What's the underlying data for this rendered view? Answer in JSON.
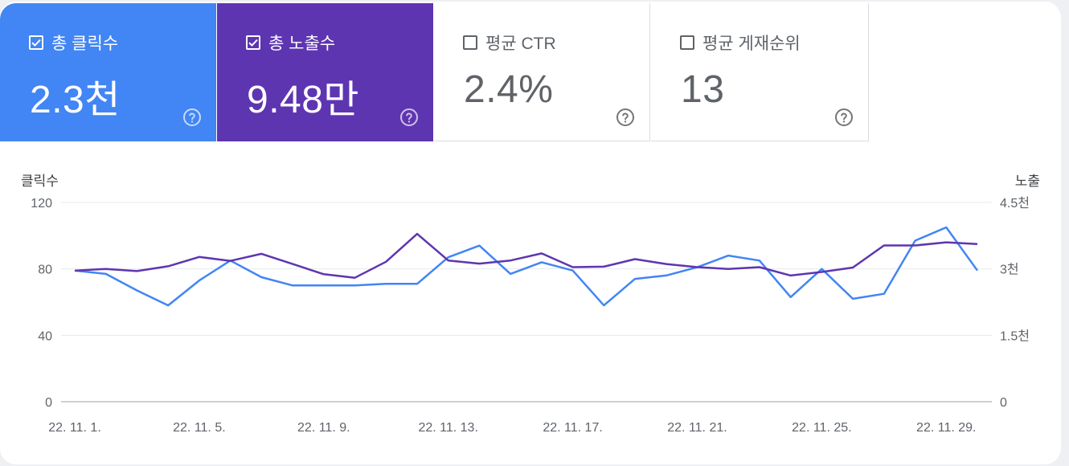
{
  "metrics": [
    {
      "label": "총 클릭수",
      "value": "2.3천",
      "checked": true,
      "color": "#4285f4"
    },
    {
      "label": "총 노출수",
      "value": "9.48만",
      "checked": true,
      "color": "#5e35b1"
    },
    {
      "label": "평균 CTR",
      "value": "2.4%",
      "checked": false,
      "color": "#ffffff"
    },
    {
      "label": "평균 게재순위",
      "value": "13",
      "checked": false,
      "color": "#ffffff"
    }
  ],
  "chart_data": {
    "type": "line",
    "ylabel_left": "클릭수",
    "ylabel_right": "노출",
    "left_ticks": [
      "0",
      "40",
      "80",
      "120"
    ],
    "left_range": [
      0,
      120
    ],
    "right_ticks": [
      "0",
      "1.5천",
      "3천",
      "4.5천"
    ],
    "right_range": [
      0,
      4500
    ],
    "grid": true,
    "x": [
      "22. 11. 1.",
      "22. 11. 2.",
      "22. 11. 3.",
      "22. 11. 4.",
      "22. 11. 5.",
      "22. 11. 6.",
      "22. 11. 7.",
      "22. 11. 8.",
      "22. 11. 9.",
      "22. 11. 10.",
      "22. 11. 11.",
      "22. 11. 12.",
      "22. 11. 13.",
      "22. 11. 14.",
      "22. 11. 15.",
      "22. 11. 16.",
      "22. 11. 17.",
      "22. 11. 18.",
      "22. 11. 19.",
      "22. 11. 20.",
      "22. 11. 21.",
      "22. 11. 22.",
      "22. 11. 23.",
      "22. 11. 24.",
      "22. 11. 25.",
      "22. 11. 26.",
      "22. 11. 27.",
      "22. 11. 28.",
      "22. 11. 29.",
      "22. 11. 30."
    ],
    "x_tick_labels": [
      "22. 11. 1.",
      "22. 11. 5.",
      "22. 11. 9.",
      "22. 11. 13.",
      "22. 11. 17.",
      "22. 11. 21.",
      "22. 11. 25.",
      "22. 11. 29."
    ],
    "series": [
      {
        "name": "총 클릭수",
        "axis": "left",
        "color": "#4285f4",
        "values": [
          79,
          77,
          67,
          58,
          73,
          85,
          75,
          70,
          70,
          70,
          71,
          71,
          87,
          94,
          77,
          84,
          79,
          58,
          74,
          76,
          81,
          88,
          85,
          63,
          80,
          62,
          65,
          97,
          105,
          79
        ]
      },
      {
        "name": "총 노출수",
        "axis": "right",
        "color": "#5e35b1",
        "values": [
          2960,
          3000,
          2950,
          3060,
          3270,
          3180,
          3340,
          3110,
          2880,
          2800,
          3160,
          3790,
          3190,
          3120,
          3190,
          3350,
          3040,
          3050,
          3220,
          3110,
          3040,
          3000,
          3040,
          2850,
          2930,
          3030,
          3530,
          3530,
          3600,
          3560
        ]
      }
    ]
  }
}
